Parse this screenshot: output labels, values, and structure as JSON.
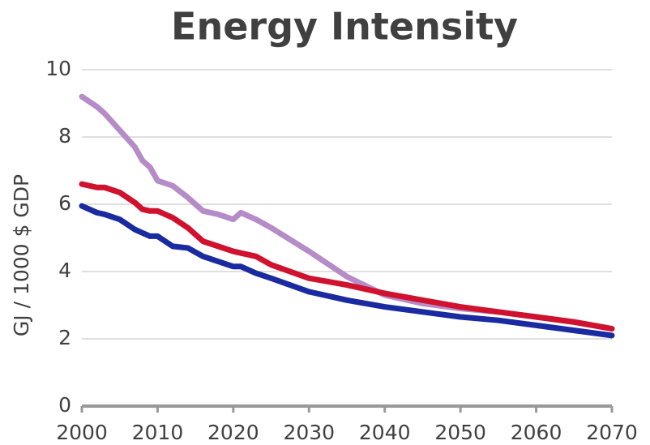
{
  "chart_data": {
    "type": "line",
    "title": "Energy Intensity",
    "y_label": "GJ / 1000 $ GDP",
    "x": [
      2000,
      2002,
      2003,
      2005,
      2007,
      2008,
      2009,
      2010,
      2012,
      2014,
      2016,
      2018,
      2020,
      2021,
      2023,
      2025,
      2030,
      2035,
      2040,
      2045,
      2050,
      2055,
      2060,
      2065,
      2070
    ],
    "series": [
      {
        "color": "#b58cc8",
        "values": [
          9.2,
          8.9,
          8.7,
          8.2,
          7.7,
          7.3,
          7.1,
          6.7,
          6.55,
          6.2,
          5.8,
          5.7,
          5.55,
          5.75,
          5.55,
          5.3,
          4.6,
          3.85,
          3.3,
          3.05,
          2.9,
          2.8,
          2.65,
          2.5,
          2.3
        ]
      },
      {
        "color": "#d0122e",
        "values": [
          6.6,
          6.5,
          6.5,
          6.35,
          6.05,
          5.85,
          5.8,
          5.8,
          5.6,
          5.3,
          4.9,
          4.75,
          4.6,
          4.55,
          4.45,
          4.2,
          3.8,
          3.6,
          3.35,
          3.15,
          2.95,
          2.8,
          2.65,
          2.5,
          2.3
        ]
      },
      {
        "color": "#1a2aa0",
        "values": [
          5.95,
          5.75,
          5.7,
          5.55,
          5.25,
          5.15,
          5.05,
          5.05,
          4.75,
          4.7,
          4.45,
          4.3,
          4.15,
          4.15,
          3.95,
          3.8,
          3.4,
          3.15,
          2.95,
          2.8,
          2.65,
          2.55,
          2.4,
          2.25,
          2.1
        ]
      }
    ],
    "xlim": [
      2000,
      2070
    ],
    "xticks": [
      2000,
      2010,
      2020,
      2030,
      2040,
      2050,
      2060,
      2070
    ],
    "ylim": [
      0,
      10
    ],
    "yticks": [
      0,
      2,
      4,
      6,
      8,
      10
    ],
    "grid": true
  }
}
